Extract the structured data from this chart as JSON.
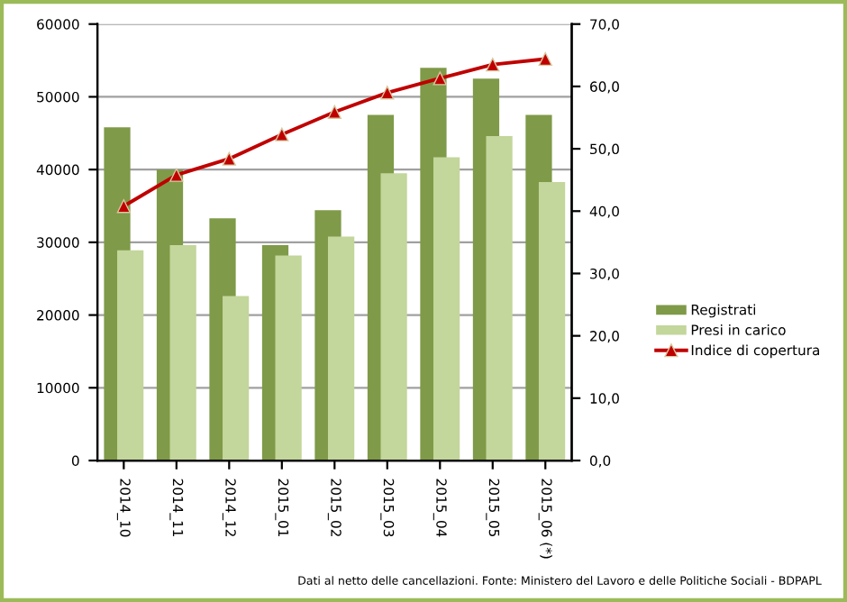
{
  "chart_data": {
    "type": "bar",
    "categories": [
      "2014_10",
      "2014_11",
      "2014_12",
      "2015_01",
      "2015_02",
      "2015_03",
      "2015_04",
      "2015_05",
      "2015_06 (*)"
    ],
    "series": [
      {
        "name": "Registrati",
        "color": "#7f9a48",
        "values": [
          45800,
          40000,
          33300,
          29600,
          34400,
          47500,
          54000,
          52500,
          47500
        ]
      },
      {
        "name": "Presi in carico",
        "color": "#c3d69b",
        "values": [
          28900,
          29600,
          22600,
          28200,
          30800,
          39500,
          41700,
          44600,
          38300
        ]
      },
      {
        "name": "Indice di copertura",
        "type": "line",
        "axis": "y2",
        "color": "#c00000",
        "marker": "triangle",
        "values": [
          40.8,
          45.8,
          48.4,
          52.3,
          55.9,
          59.0,
          61.3,
          63.5,
          64.4
        ]
      }
    ],
    "ylim": [
      0,
      60000
    ],
    "yticks": [
      0,
      10000,
      20000,
      30000,
      40000,
      50000,
      60000
    ],
    "y2lim": [
      0,
      70
    ],
    "y2ticks": [
      {
        "value": 0,
        "label": "0,0"
      },
      {
        "value": 10,
        "label": "10,0"
      },
      {
        "value": 20,
        "label": "20,0"
      },
      {
        "value": 30,
        "label": "30,0"
      },
      {
        "value": 40,
        "label": "40,0"
      },
      {
        "value": 50,
        "label": "50,0"
      },
      {
        "value": 60,
        "label": "60,0"
      },
      {
        "value": 70,
        "label": "70,0"
      }
    ],
    "grid": "y",
    "legend": "right",
    "annotations": [
      "Dati al netto delle cancellazioni. Fonte: Ministero del Lavoro e delle Politiche Sociali - BDPAPL"
    ]
  }
}
